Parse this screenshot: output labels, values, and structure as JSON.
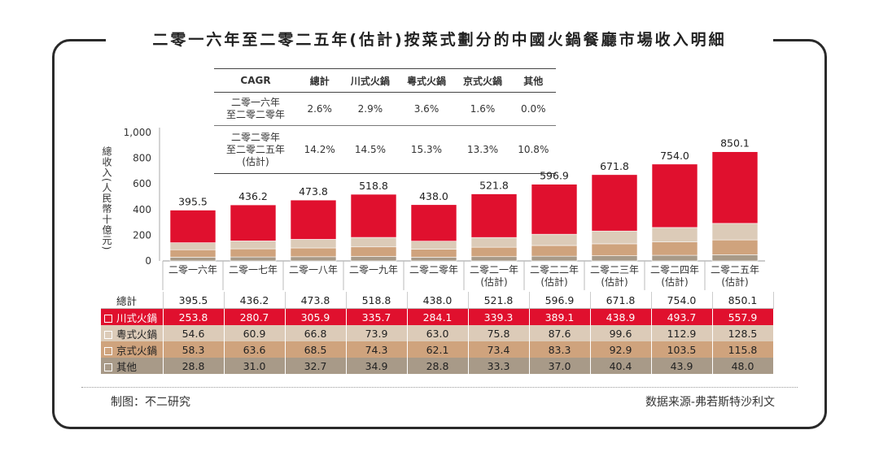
{
  "title": "二零一六年至二零二五年(估計)按菜式劃分的中國火鍋餐廳市場收入明細",
  "cagr_table": {
    "headers": [
      "CAGR",
      "總計",
      "川式火鍋",
      "粵式火鍋",
      "京式火鍋",
      "其他"
    ],
    "rows": [
      {
        "label_lines": [
          "二零一六年",
          "至二零二零年"
        ],
        "values": [
          "2.6%",
          "2.9%",
          "3.6%",
          "1.6%",
          "0.0%"
        ]
      },
      {
        "label_lines": [
          "二零二零年",
          "至二零二五年",
          "(估計)"
        ],
        "values": [
          "14.2%",
          "14.5%",
          "15.3%",
          "13.3%",
          "10.8%"
        ]
      }
    ]
  },
  "chart_data": {
    "type": "bar",
    "stacked": true,
    "ylabel": "總收入(人民幣十億元)",
    "ylim": [
      0,
      1000
    ],
    "yticks": [
      "0",
      "200",
      "400",
      "600",
      "800",
      "1,000"
    ],
    "categories": [
      [
        "二零一六年"
      ],
      [
        "二零一七年"
      ],
      [
        "二零一八年"
      ],
      [
        "二零一九年"
      ],
      [
        "二零二零年"
      ],
      [
        "二零二一年",
        "(估計)"
      ],
      [
        "二零二二年",
        "(估計)"
      ],
      [
        "二零二三年",
        "(估計)"
      ],
      [
        "二零二四年",
        "(估計)"
      ],
      [
        "二零二五年",
        "(估計)"
      ]
    ],
    "totals": [
      "395.5",
      "436.2",
      "473.8",
      "518.8",
      "438.0",
      "521.8",
      "596.9",
      "671.8",
      "754.0",
      "850.1"
    ],
    "series": [
      {
        "name": "其他",
        "color": "#a89a88",
        "values": [
          28.8,
          31.0,
          32.7,
          34.9,
          28.8,
          33.3,
          37.0,
          40.4,
          43.9,
          48.0
        ]
      },
      {
        "name": "京式火鍋",
        "color": "#cfa37d",
        "values": [
          58.3,
          63.6,
          68.5,
          74.3,
          62.1,
          73.4,
          83.3,
          92.9,
          103.5,
          115.8
        ]
      },
      {
        "name": "粵式火鍋",
        "color": "#dccbb8",
        "values": [
          54.6,
          60.9,
          66.8,
          73.9,
          63.0,
          75.8,
          87.6,
          99.6,
          112.9,
          128.5
        ]
      },
      {
        "name": "川式火鍋",
        "color": "#e0102e",
        "values": [
          253.8,
          280.7,
          305.9,
          335.7,
          284.1,
          339.3,
          389.1,
          438.9,
          493.7,
          557.9
        ]
      }
    ]
  },
  "data_table": {
    "total_label": "總計",
    "total_values": [
      "395.5",
      "436.2",
      "473.8",
      "518.8",
      "438.0",
      "521.8",
      "596.9",
      "671.8",
      "754.0",
      "850.1"
    ],
    "rows": [
      {
        "name": "川式火鍋",
        "values": [
          "253.8",
          "280.7",
          "305.9",
          "335.7",
          "284.1",
          "339.3",
          "389.1",
          "438.9",
          "493.7",
          "557.9"
        ]
      },
      {
        "name": "粵式火鍋",
        "values": [
          "54.6",
          "60.9",
          "66.8",
          "73.9",
          "63.0",
          "75.8",
          "87.6",
          "99.6",
          "112.9",
          "128.5"
        ]
      },
      {
        "name": "京式火鍋",
        "values": [
          "58.3",
          "63.6",
          "68.5",
          "74.3",
          "62.1",
          "73.4",
          "83.3",
          "92.9",
          "103.5",
          "115.8"
        ]
      },
      {
        "name": "其他",
        "values": [
          "28.8",
          "31.0",
          "32.7",
          "34.9",
          "28.8",
          "33.3",
          "37.0",
          "40.4",
          "43.9",
          "48.0"
        ]
      }
    ]
  },
  "footer": {
    "left": "制图：不二研究",
    "right": "数据来源-弗若斯特沙利文"
  }
}
